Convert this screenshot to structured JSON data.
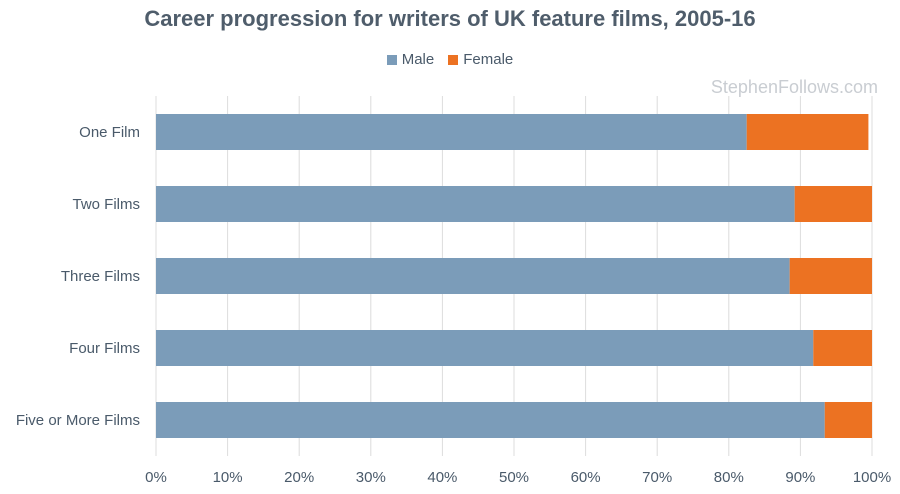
{
  "chart_data": {
    "type": "bar",
    "orientation": "horizontal",
    "stacked": true,
    "title": "Career progression for writers of UK feature films, 2005-16",
    "categories": [
      "One Film",
      "Two Films",
      "Three Films",
      "Four Films",
      "Five or More Films"
    ],
    "series": [
      {
        "name": "Male",
        "values": [
          82.5,
          89.2,
          88.5,
          91.8,
          93.4
        ]
      },
      {
        "name": "Female",
        "values": [
          17.0,
          10.8,
          11.5,
          8.2,
          6.6
        ]
      }
    ],
    "xlim": [
      0,
      100
    ],
    "xticks": [
      "0%",
      "10%",
      "20%",
      "30%",
      "40%",
      "50%",
      "60%",
      "70%",
      "80%",
      "90%",
      "100%"
    ],
    "grid": true,
    "legend_position": "top"
  },
  "colors": {
    "male": "#7b9cb9",
    "female": "#ec7222"
  },
  "watermark": "StephenFollows.com"
}
